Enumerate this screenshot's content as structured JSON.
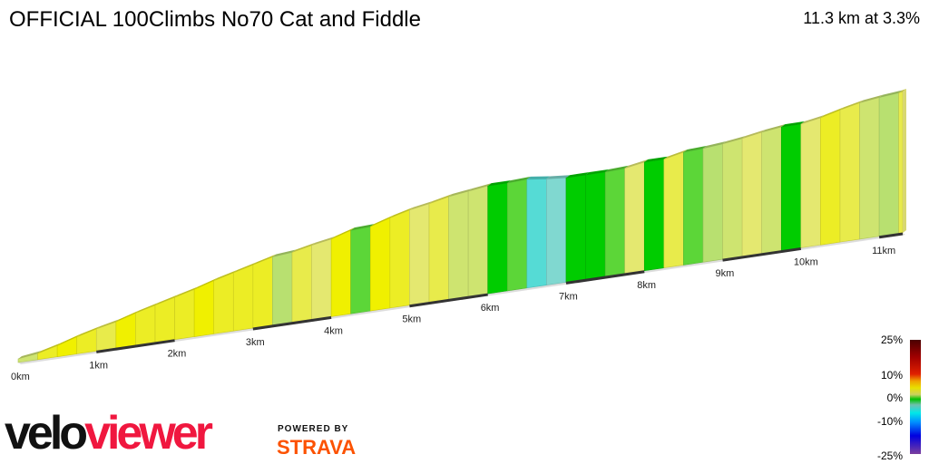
{
  "title": "OFFICIAL 100Climbs No70 Cat and Fiddle",
  "summary": "11.3 km at 3.3%",
  "chart_data": {
    "type": "area",
    "title": "OFFICIAL 100Climbs No70 Cat and Fiddle",
    "xlabel": "",
    "ylabel": "",
    "distance_km": 11.3,
    "average_gradient_pct": 3.3,
    "x_ticks": [
      "0km",
      "1km",
      "2km",
      "3km",
      "4km",
      "5km",
      "6km",
      "7km",
      "8km",
      "9km",
      "10km",
      "11km"
    ],
    "segment_length_km": 0.25,
    "segment_gradients_pct": [
      3,
      6,
      7,
      6,
      5,
      7,
      6,
      6,
      6,
      7,
      6,
      6,
      6,
      2,
      5,
      4,
      7,
      1,
      7,
      6,
      4,
      5,
      3,
      3,
      0,
      1,
      -3,
      -2,
      0,
      0,
      1,
      4,
      0,
      5,
      1,
      2,
      3,
      4,
      3,
      0,
      4,
      6,
      5,
      3,
      2,
      5
    ],
    "legend": {
      "labels": [
        "25%",
        "10%",
        "0%",
        "-10%",
        "-25%"
      ],
      "stops": [
        {
          "pct": -25,
          "color": "#7b3f9e"
        },
        {
          "pct": -15,
          "color": "#0000e0"
        },
        {
          "pct": -10,
          "color": "#0080ff"
        },
        {
          "pct": -5,
          "color": "#00e0e0"
        },
        {
          "pct": -2,
          "color": "#80d8d0"
        },
        {
          "pct": 0,
          "color": "#00cc00"
        },
        {
          "pct": 2,
          "color": "#b8e070"
        },
        {
          "pct": 4,
          "color": "#e4e870"
        },
        {
          "pct": 7,
          "color": "#f0f000"
        },
        {
          "pct": 10,
          "color": "#f0a000"
        },
        {
          "pct": 13,
          "color": "#e00000"
        },
        {
          "pct": 25,
          "color": "#500000"
        }
      ]
    }
  },
  "branding": {
    "velo": "velo",
    "viewer": "viewer",
    "powered_by": "POWERED BY",
    "strava": "STRAVA"
  }
}
